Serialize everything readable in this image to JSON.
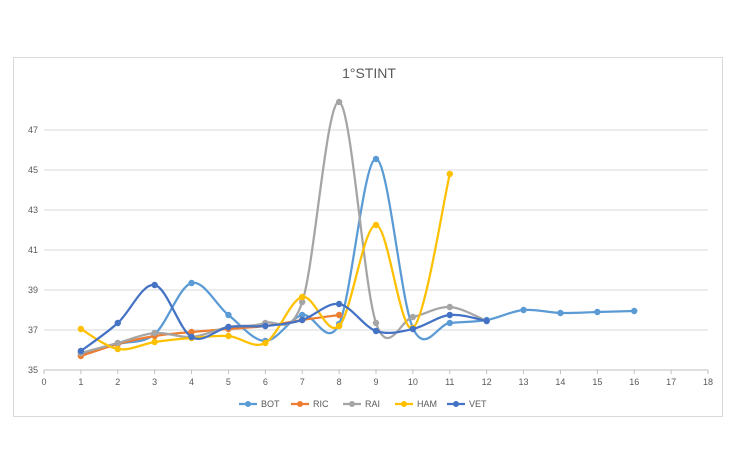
{
  "chart_data": {
    "type": "line",
    "title": "1°STINT",
    "xlabel": "",
    "ylabel": "",
    "xlim": [
      0,
      18
    ],
    "ylim": [
      35,
      49
    ],
    "xticks": [
      0,
      1,
      2,
      3,
      4,
      5,
      6,
      7,
      8,
      9,
      10,
      11,
      12,
      13,
      14,
      15,
      16,
      17,
      18
    ],
    "yticks": [
      35,
      37,
      39,
      41,
      43,
      45,
      47
    ],
    "grid": "horizontal",
    "legend_position": "bottom",
    "smooth": true,
    "series": [
      {
        "name": "BOT",
        "color": "#5B9BD5",
        "x": [
          1,
          2,
          3,
          4,
          5,
          6,
          7,
          8,
          9,
          10,
          11,
          12,
          13,
          14,
          15,
          16
        ],
        "y": [
          35.8,
          36.3,
          36.8,
          39.35,
          37.75,
          36.45,
          37.75,
          37.3,
          45.55,
          37.1,
          37.35,
          37.5,
          38.0,
          37.85,
          37.9,
          37.95
        ]
      },
      {
        "name": "RIC",
        "color": "#ED7D31",
        "x": [
          1,
          2,
          3,
          4,
          5,
          6,
          7,
          8
        ],
        "y": [
          35.7,
          36.3,
          36.7,
          36.9,
          37.05,
          37.2,
          37.5,
          37.75
        ]
      },
      {
        "name": "RAI",
        "color": "#A5A5A5",
        "x": [
          1,
          2,
          3,
          4,
          5,
          6,
          7,
          8,
          9,
          10,
          11,
          12
        ],
        "y": [
          35.85,
          36.35,
          36.85,
          36.65,
          37.15,
          37.35,
          38.4,
          48.4,
          37.35,
          37.65,
          38.15,
          37.45
        ]
      },
      {
        "name": "HAM",
        "color": "#FFC000",
        "x": [
          1,
          2,
          3,
          4,
          5,
          6,
          7,
          8,
          9,
          10,
          11
        ],
        "y": [
          37.05,
          36.05,
          36.4,
          36.6,
          36.7,
          36.35,
          38.65,
          37.2,
          42.25,
          37.1,
          44.8
        ]
      },
      {
        "name": "VET",
        "color": "#4472C4",
        "x": [
          1,
          2,
          3,
          4,
          5,
          6,
          7,
          8,
          9,
          10,
          11,
          12
        ],
        "y": [
          35.95,
          37.35,
          39.25,
          36.65,
          37.15,
          37.2,
          37.5,
          38.3,
          36.95,
          37.05,
          37.75,
          37.45
        ]
      }
    ]
  }
}
